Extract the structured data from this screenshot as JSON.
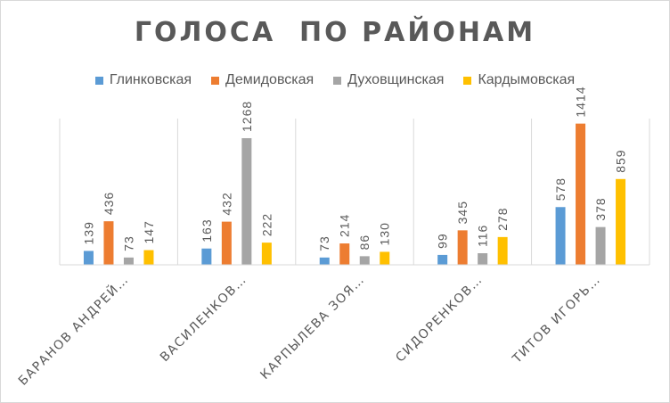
{
  "chart_data": {
    "type": "bar",
    "title": "ГОЛОСА  ПО РАЙОНАМ",
    "categories": [
      "БАРАНОВ АНДРЕЙ…",
      "ВАСИЛЕНКОВ…",
      "КАРПЫЛЕВА ЗОЯ…",
      "СИДОРЕНКОВ…",
      "ТИТОВ ИГОРЬ…"
    ],
    "series": [
      {
        "name": "Глинковская",
        "color": "#5B9BD5",
        "values": [
          139,
          163,
          73,
          99,
          578
        ]
      },
      {
        "name": "Демидовская",
        "color": "#ED7D31",
        "values": [
          436,
          432,
          214,
          345,
          1414
        ]
      },
      {
        "name": "Духовщинская",
        "color": "#A5A5A5",
        "values": [
          73,
          1268,
          86,
          116,
          378
        ]
      },
      {
        "name": "Кардымовская",
        "color": "#FFC000",
        "values": [
          147,
          222,
          130,
          278,
          859
        ]
      }
    ],
    "ylim": [
      0,
      1500
    ],
    "legend_position": "top",
    "grid": false,
    "data_labels": true
  }
}
